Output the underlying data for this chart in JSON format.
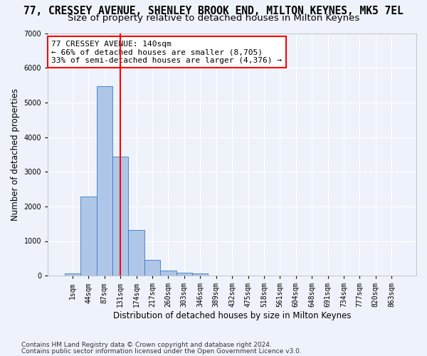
{
  "title": "77, CRESSEY AVENUE, SHENLEY BROOK END, MILTON KEYNES, MK5 7EL",
  "subtitle": "Size of property relative to detached houses in Milton Keynes",
  "xlabel": "Distribution of detached houses by size in Milton Keynes",
  "ylabel": "Number of detached properties",
  "footnote1": "Contains HM Land Registry data © Crown copyright and database right 2024.",
  "footnote2": "Contains public sector information licensed under the Open Government Licence v3.0.",
  "bar_values": [
    75,
    2280,
    5470,
    3430,
    1310,
    460,
    155,
    80,
    55,
    0,
    0,
    0,
    0,
    0,
    0,
    0,
    0,
    0,
    0,
    0,
    0
  ],
  "bar_labels": [
    "1sqm",
    "44sqm",
    "87sqm",
    "131sqm",
    "174sqm",
    "217sqm",
    "260sqm",
    "303sqm",
    "346sqm",
    "389sqm",
    "432sqm",
    "475sqm",
    "518sqm",
    "561sqm",
    "604sqm",
    "648sqm",
    "691sqm",
    "734sqm",
    "777sqm",
    "820sqm",
    "863sqm"
  ],
  "bar_color": "#aec6e8",
  "bar_edge_color": "#3a7abf",
  "ref_line_x": 3.0,
  "ref_line_color": "red",
  "ylim": [
    0,
    7000
  ],
  "yticks": [
    0,
    1000,
    2000,
    3000,
    4000,
    5000,
    6000,
    7000
  ],
  "annotation_text": "77 CRESSEY AVENUE: 140sqm\n← 66% of detached houses are smaller (8,705)\n33% of semi-detached houses are larger (4,376) →",
  "annotation_box_color": "white",
  "annotation_box_edgecolor": "red",
  "bg_color": "#eef3fb",
  "grid_color": "white",
  "title_fontsize": 10.5,
  "subtitle_fontsize": 9.5,
  "axis_fontsize": 8.5,
  "tick_fontsize": 7.0,
  "footnote_fontsize": 6.5
}
